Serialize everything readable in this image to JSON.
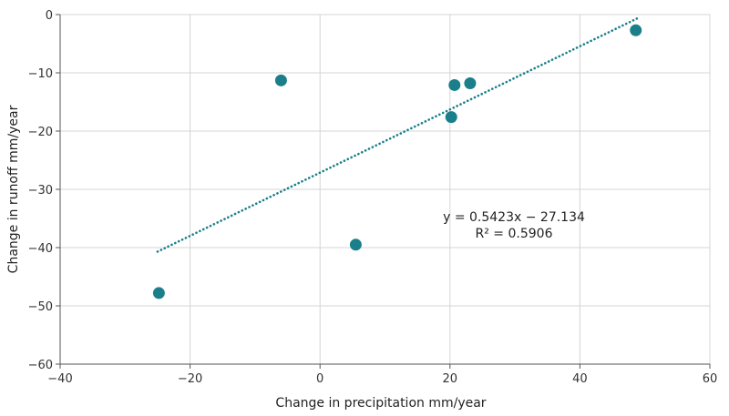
{
  "chart_data": {
    "type": "scatter",
    "xlabel": "Change in precipitation mm/year",
    "ylabel": "Change in runoff mm/year",
    "xlim": [
      -40,
      60
    ],
    "ylim": [
      -60,
      0
    ],
    "xticks": [
      -40,
      -20,
      0,
      20,
      40,
      60
    ],
    "yticks": [
      0,
      -10,
      -20,
      -30,
      -40,
      -50,
      -60
    ],
    "x_tick_labels": [
      "−40",
      "−20",
      "0",
      "20",
      "40",
      "60"
    ],
    "y_tick_labels": [
      "0",
      "−10",
      "−20",
      "−30",
      "−40",
      "−50",
      "−60"
    ],
    "grid": true,
    "points": [
      {
        "x": -24.8,
        "y": -47.8
      },
      {
        "x": -6.0,
        "y": -11.3
      },
      {
        "x": 5.5,
        "y": -39.5
      },
      {
        "x": 20.2,
        "y": -17.6
      },
      {
        "x": 20.7,
        "y": -12.1
      },
      {
        "x": 23.1,
        "y": -11.8
      },
      {
        "x": 48.6,
        "y": -2.7
      }
    ],
    "trendline": {
      "slope": 0.5423,
      "intercept": -27.134,
      "x_range": [
        -25,
        49
      ],
      "style": "dotted",
      "equation": "y = 0.5423x − 27.134",
      "r_squared": "R² = 0.5906"
    },
    "colors": {
      "marker": "#1a7f8a",
      "trendline": "#1a7f8a",
      "grid": "#d4d4d4",
      "axis": "#555555"
    }
  }
}
